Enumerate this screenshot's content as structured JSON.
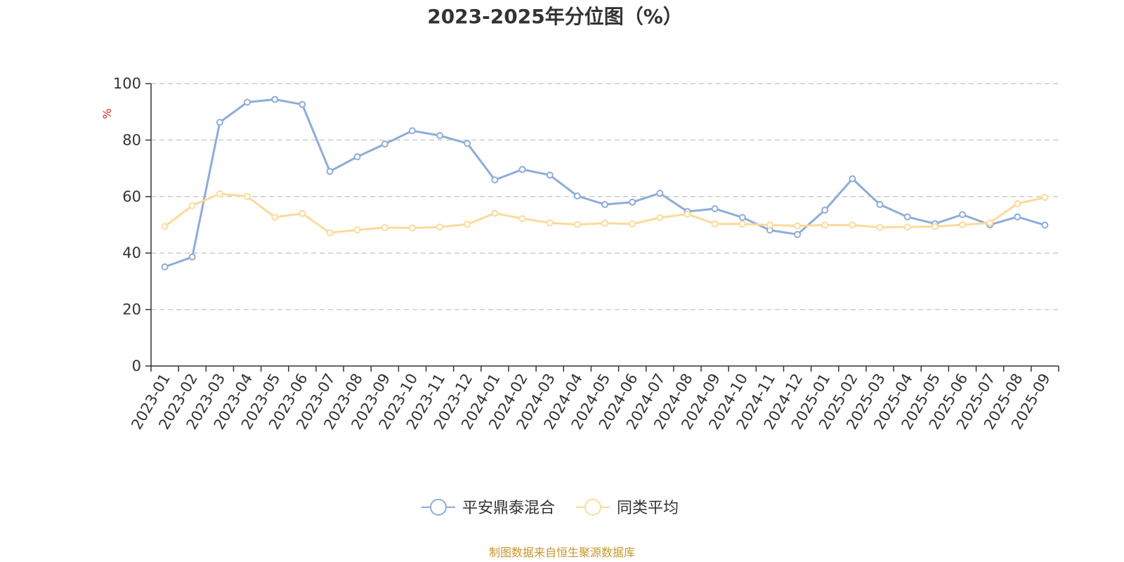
{
  "chart_data": {
    "type": "line",
    "title": "2023-2025年分位图（%）",
    "ylabel": "%",
    "xlabel": "",
    "ylim": [
      0,
      100
    ],
    "yticks": [
      0,
      20,
      40,
      60,
      80,
      100
    ],
    "grid": true,
    "legend_position": "bottom-center",
    "categories": [
      "2023-01",
      "2023-02",
      "2023-03",
      "2023-04",
      "2023-05",
      "2023-06",
      "2023-07",
      "2023-08",
      "2023-09",
      "2023-10",
      "2023-11",
      "2023-12",
      "2024-01",
      "2024-02",
      "2024-03",
      "2024-04",
      "2024-05",
      "2024-06",
      "2024-07",
      "2024-08",
      "2024-09",
      "2024-10",
      "2024-11",
      "2024-12",
      "2025-01",
      "2025-02",
      "2025-03",
      "2025-04",
      "2025-05",
      "2025-06",
      "2025-07",
      "2025-08",
      "2025-09"
    ],
    "series": [
      {
        "name": "平安鼎泰混合",
        "color": "#8eacd9",
        "values": [
          35.1,
          38.6,
          86.3,
          93.4,
          94.4,
          92.6,
          68.9,
          74.1,
          78.6,
          83.3,
          81.6,
          78.8,
          65.9,
          69.6,
          67.6,
          60.2,
          57.2,
          58.0,
          61.2,
          54.7,
          55.7,
          52.6,
          48.1,
          46.6,
          55.2,
          66.3,
          57.2,
          52.8,
          50.4,
          53.6,
          50.0,
          52.8,
          49.9
        ]
      },
      {
        "name": "同类平均",
        "color": "#fcda9b",
        "values": [
          49.4,
          56.8,
          61.0,
          60.0,
          52.7,
          54.0,
          47.2,
          48.2,
          49.0,
          48.9,
          49.2,
          50.2,
          54.1,
          52.2,
          50.7,
          50.1,
          50.6,
          50.3,
          52.5,
          53.8,
          50.3,
          50.3,
          49.9,
          49.6,
          49.9,
          49.9,
          49.1,
          49.2,
          49.4,
          50.0,
          50.7,
          57.5,
          59.7
        ]
      }
    ],
    "source_note": "制图数据来自恒生聚源数据库",
    "colors": {
      "axis": "#333333",
      "grid": "#cccccc",
      "unit_label": "#e02020",
      "source_note": "#c8962c"
    }
  }
}
